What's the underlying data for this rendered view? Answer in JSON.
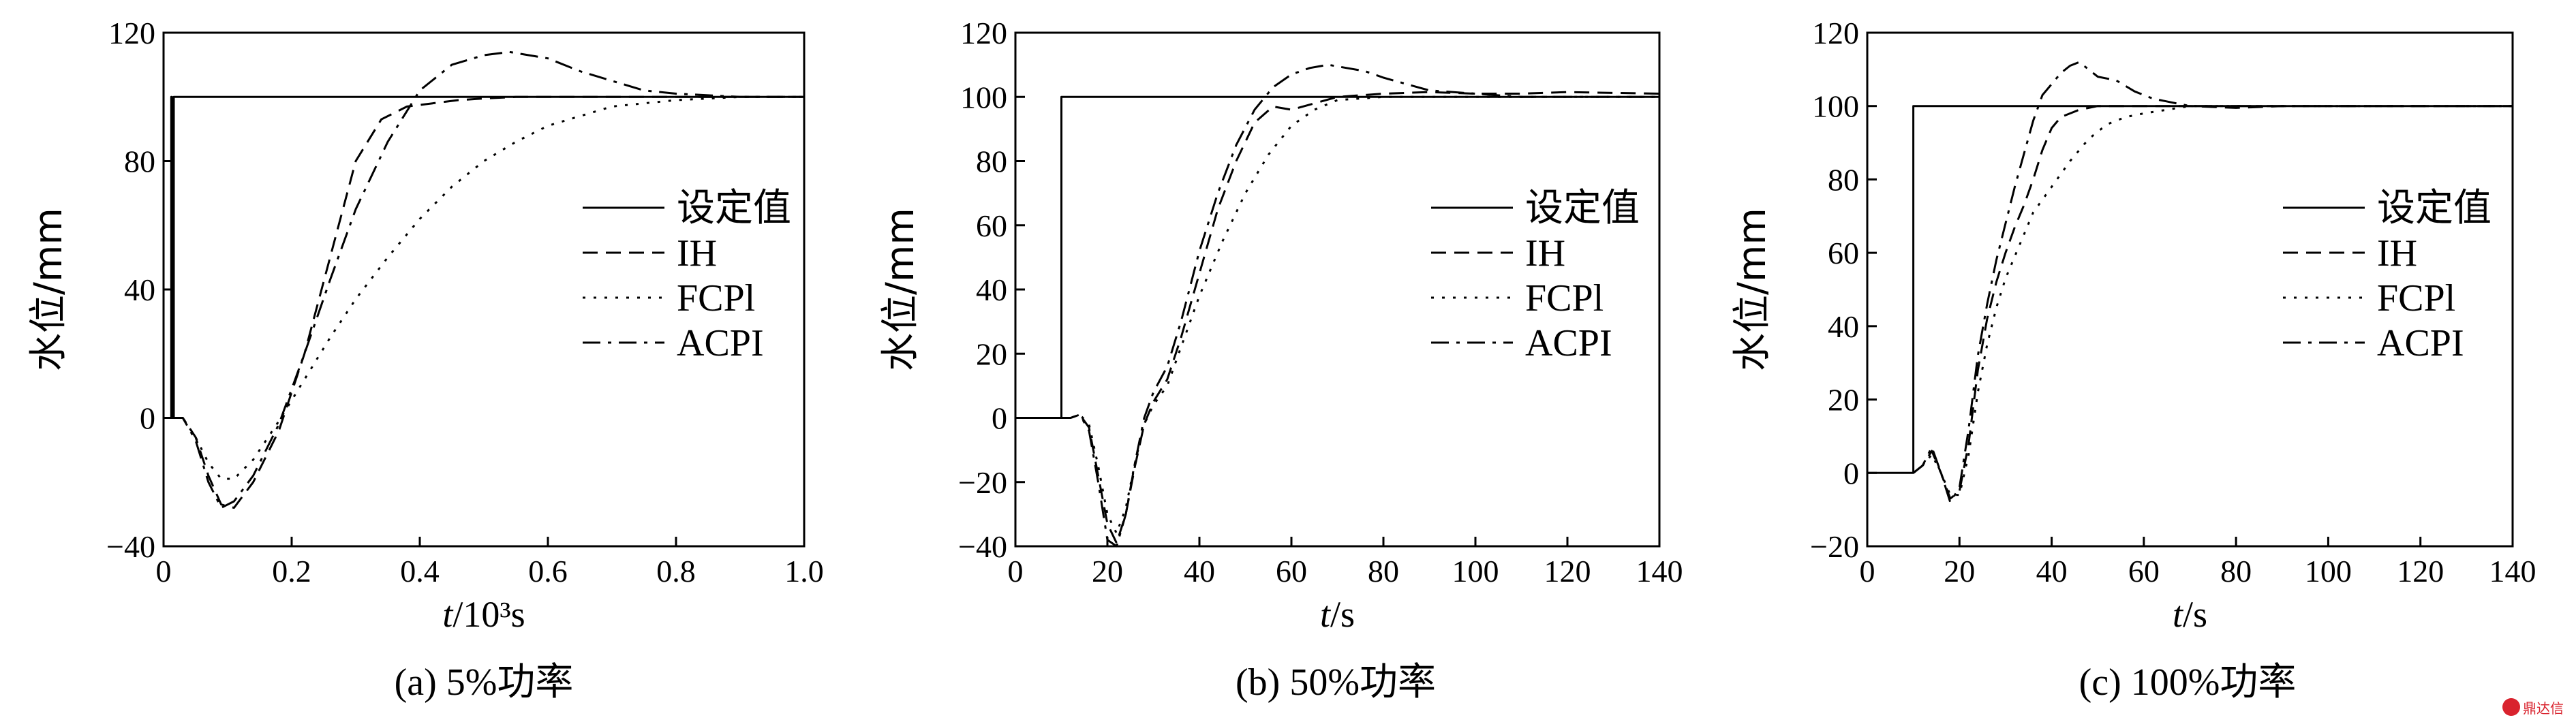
{
  "chart_data": [
    {
      "type": "line",
      "caption": "(a) 5%功率",
      "ylabel": "水位/mm",
      "xlabel_italic": "t",
      "xlabel_rest": "/10³s",
      "xlim": [
        0,
        1.0
      ],
      "ylim": [
        -40,
        120
      ],
      "xticks": [
        0,
        0.2,
        0.4,
        0.6,
        0.8,
        1.0
      ],
      "xtick_labels": [
        "0",
        "0.2",
        "0.4",
        "0.6",
        "0.8",
        "1.0"
      ],
      "yticks": [
        -40,
        0,
        40,
        80,
        120
      ],
      "ytick_labels": [
        "−40",
        "0",
        "40",
        "80",
        "120"
      ],
      "legend_position": "right",
      "series": [
        {
          "name": "设定值",
          "style": "solid",
          "x": [
            0,
            0.012,
            0.012,
            0.013,
            0.013,
            0.016,
            0.016,
            1.0
          ],
          "y": [
            0,
            0,
            100,
            100,
            0,
            0,
            100,
            100
          ]
        },
        {
          "name": "IH",
          "style": "dash",
          "x": [
            0.016,
            0.03,
            0.05,
            0.07,
            0.09,
            0.11,
            0.14,
            0.18,
            0.22,
            0.26,
            0.3,
            0.34,
            0.38,
            0.42,
            0.46,
            0.5,
            0.55,
            0.6,
            0.7,
            0.8,
            0.9,
            1.0
          ],
          "y": [
            0,
            0,
            -6,
            -18,
            -27,
            -28,
            -20,
            -4,
            20,
            50,
            80,
            93,
            97,
            98,
            99,
            99.5,
            100,
            100,
            100,
            100,
            100,
            100
          ]
        },
        {
          "name": "FCPl",
          "style": "dot",
          "x": [
            0.016,
            0.03,
            0.05,
            0.07,
            0.09,
            0.11,
            0.14,
            0.18,
            0.22,
            0.26,
            0.3,
            0.35,
            0.4,
            0.45,
            0.5,
            0.55,
            0.6,
            0.65,
            0.7,
            0.8,
            0.9,
            1.0
          ],
          "y": [
            0,
            0,
            -6,
            -14,
            -19,
            -19,
            -13,
            -1,
            12,
            25,
            37,
            50,
            62,
            72,
            80,
            86,
            91,
            94,
            97,
            99,
            100,
            100
          ]
        },
        {
          "name": "ACPI",
          "style": "dashdot",
          "x": [
            0.016,
            0.03,
            0.05,
            0.07,
            0.09,
            0.11,
            0.14,
            0.18,
            0.22,
            0.26,
            0.3,
            0.35,
            0.4,
            0.45,
            0.5,
            0.54,
            0.6,
            0.65,
            0.7,
            0.75,
            0.8,
            0.9,
            1.0
          ],
          "y": [
            0,
            0,
            -7,
            -20,
            -28,
            -26,
            -18,
            -2,
            20,
            43,
            65,
            86,
            102,
            110,
            113,
            114,
            112,
            108,
            105,
            102,
            101,
            100,
            100
          ]
        }
      ]
    },
    {
      "type": "line",
      "caption": "(b) 50%功率",
      "ylabel": "水位/mm",
      "xlabel_italic": "t",
      "xlabel_rest": "/s",
      "xlim": [
        0,
        140
      ],
      "ylim": [
        -40,
        120
      ],
      "xticks": [
        0,
        20,
        40,
        60,
        80,
        100,
        120,
        140
      ],
      "xtick_labels": [
        "0",
        "20",
        "40",
        "60",
        "80",
        "100",
        "120",
        "140"
      ],
      "yticks": [
        -40,
        -20,
        0,
        20,
        40,
        60,
        80,
        100,
        120
      ],
      "ytick_labels": [
        "−40",
        "−20",
        "0",
        "20",
        "40",
        "60",
        "80",
        "100",
        "120"
      ],
      "legend_position": "right",
      "series": [
        {
          "name": "设定值",
          "style": "solid",
          "x": [
            0,
            10,
            10,
            140
          ],
          "y": [
            0,
            0,
            100,
            100
          ]
        },
        {
          "name": "IH",
          "style": "dash",
          "x": [
            10,
            12,
            14,
            16,
            18,
            20,
            22,
            24,
            26,
            28,
            30,
            33,
            36,
            40,
            44,
            48,
            52,
            56,
            60,
            65,
            70,
            80,
            90,
            100,
            110,
            120,
            140
          ],
          "y": [
            0,
            0,
            1,
            -3,
            -18,
            -33,
            -39,
            -30,
            -15,
            -2,
            5,
            12,
            25,
            45,
            65,
            80,
            92,
            97,
            96,
            98,
            100,
            101,
            101.5,
            101,
            101,
            101.5,
            101
          ]
        },
        {
          "name": "FCPl",
          "style": "dot",
          "x": [
            10,
            12,
            14,
            16,
            18,
            20,
            22,
            24,
            26,
            28,
            30,
            33,
            36,
            40,
            45,
            50,
            55,
            60,
            65,
            70,
            80,
            90,
            100,
            110,
            120,
            140
          ],
          "y": [
            0,
            0,
            1,
            -2,
            -15,
            -30,
            -36,
            -28,
            -14,
            -2,
            4,
            10,
            22,
            38,
            55,
            70,
            82,
            91,
            96,
            99,
            100,
            100,
            100,
            100,
            100,
            100
          ]
        },
        {
          "name": "ACPI",
          "style": "dashdot",
          "x": [
            10,
            12,
            14,
            16,
            18,
            20,
            22,
            24,
            26,
            28,
            30,
            33,
            36,
            40,
            44,
            48,
            52,
            56,
            60,
            64,
            68,
            72,
            76,
            80,
            85,
            90,
            100,
            110,
            120,
            140
          ],
          "y": [
            0,
            0,
            1,
            -4,
            -20,
            -38,
            -40,
            -30,
            -14,
            0,
            8,
            16,
            30,
            52,
            70,
            85,
            96,
            103,
            107,
            109,
            110,
            109,
            108,
            106,
            104,
            102,
            101,
            100,
            100,
            100
          ]
        }
      ]
    },
    {
      "type": "line",
      "caption": "(c) 100%功率",
      "ylabel": "水位/mm",
      "xlabel_italic": "t",
      "xlabel_rest": "/s",
      "xlim": [
        0,
        140
      ],
      "ylim": [
        -20,
        120
      ],
      "xticks": [
        0,
        20,
        40,
        60,
        80,
        100,
        120,
        140
      ],
      "xtick_labels": [
        "0",
        "20",
        "40",
        "60",
        "80",
        "100",
        "120",
        "140"
      ],
      "yticks": [
        -20,
        0,
        20,
        40,
        60,
        80,
        100,
        120
      ],
      "ytick_labels": [
        "−20",
        "0",
        "20",
        "40",
        "60",
        "80",
        "100",
        "120"
      ],
      "legend_position": "right",
      "series": [
        {
          "name": "设定值",
          "style": "solid",
          "x": [
            0,
            10,
            10,
            140
          ],
          "y": [
            0,
            0,
            100,
            100
          ]
        },
        {
          "name": "IH",
          "style": "dash",
          "x": [
            10,
            12,
            14,
            16,
            18,
            20,
            22,
            24,
            26,
            28,
            30,
            32,
            34,
            36,
            38,
            40,
            42,
            44,
            46,
            50,
            55,
            60,
            65,
            70,
            80,
            90,
            100,
            120,
            140
          ],
          "y": [
            0,
            2,
            6,
            0,
            -7,
            -5,
            8,
            28,
            42,
            52,
            60,
            67,
            73,
            80,
            88,
            94,
            97,
            98,
            99,
            100,
            100,
            100,
            100,
            100,
            99.5,
            100,
            100,
            100,
            100
          ]
        },
        {
          "name": "FCPl",
          "style": "dot",
          "x": [
            10,
            12,
            14,
            16,
            18,
            20,
            22,
            24,
            26,
            28,
            30,
            33,
            36,
            40,
            44,
            48,
            52,
            56,
            60,
            65,
            70,
            80,
            90,
            100,
            120,
            140
          ],
          "y": [
            0,
            2,
            5,
            0,
            -6,
            -6,
            5,
            22,
            35,
            45,
            53,
            62,
            71,
            78,
            85,
            91,
            95,
            97,
            98,
            99,
            100,
            100,
            100,
            100,
            100,
            100
          ]
        },
        {
          "name": "ACPI",
          "style": "dashdot",
          "x": [
            10,
            12,
            14,
            16,
            18,
            20,
            22,
            24,
            26,
            28,
            30,
            32,
            34,
            36,
            38,
            40,
            42,
            44,
            46,
            48,
            50,
            54,
            58,
            62,
            66,
            70,
            80,
            90,
            100,
            140
          ],
          "y": [
            0,
            2,
            7,
            0,
            -8,
            -4,
            12,
            32,
            46,
            58,
            68,
            78,
            87,
            96,
            103,
            106,
            109,
            111,
            112,
            110,
            108,
            107,
            104,
            102,
            101,
            100,
            100,
            100,
            100,
            100
          ]
        }
      ]
    }
  ]
}
